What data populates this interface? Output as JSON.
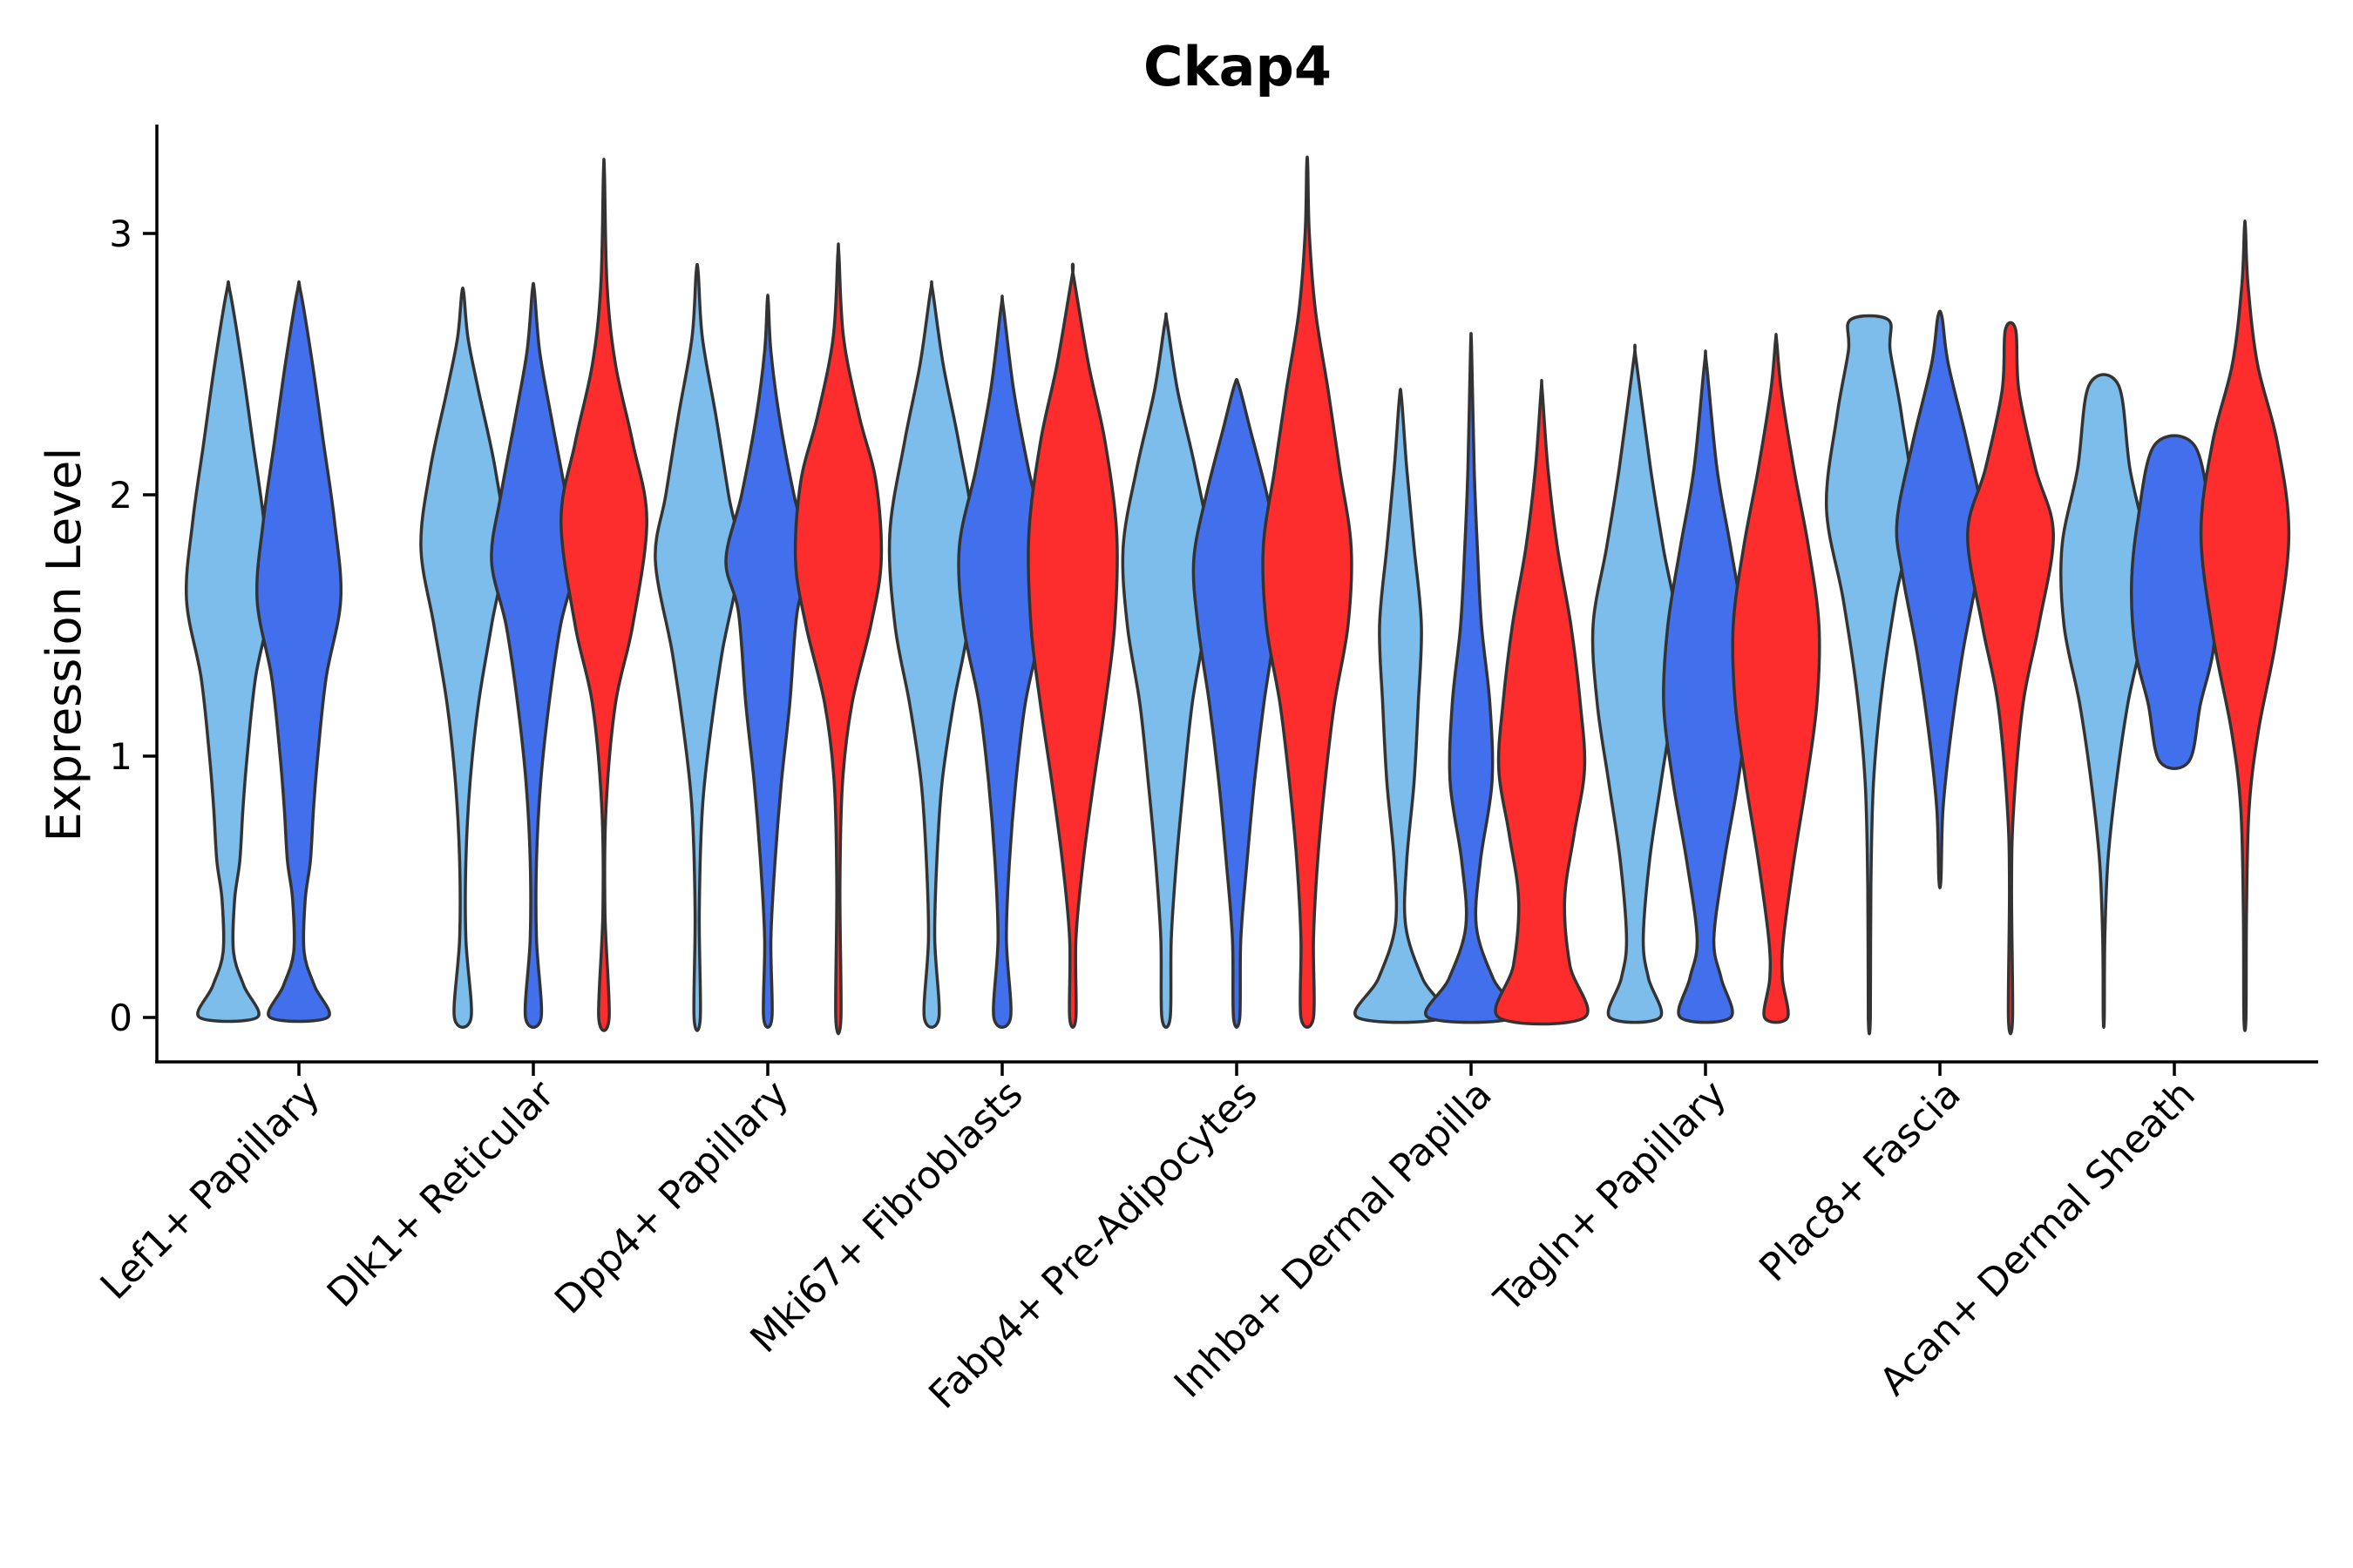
{
  "chart_data": {
    "type": "violin",
    "title": "Ckap4",
    "xlabel": "",
    "ylabel": "Expression Level",
    "ylim": [
      -0.16,
      3.42
    ],
    "yticks": [
      0,
      1,
      2,
      3
    ],
    "grid": false,
    "legend": "none",
    "colors": [
      "#7dbdec",
      "#4270ec",
      "#fe2d2d"
    ],
    "categories": [
      "Lef1+ Papillary",
      "Dlk1+ Reticular",
      "Dpp4+ Papillary",
      "Mki67+ Fibroblasts",
      "Fabp4+ Pre-Adipocytes",
      "Inhba+ Dermal Papilla",
      "Tagln+ Papillary",
      "Plac8+ Fascia",
      "Acan+ Dermal Sheath"
    ],
    "violins": [
      {
        "category": 0,
        "color_index": 0,
        "min": 0,
        "max": 2.78,
        "profile": [
          [
            0,
            0.55
          ],
          [
            0.12,
            0.3
          ],
          [
            0.25,
            0.1
          ],
          [
            0.45,
            0.12
          ],
          [
            0.6,
            0.22
          ],
          [
            0.8,
            0.28
          ],
          [
            1.0,
            0.36
          ],
          [
            1.3,
            0.52
          ],
          [
            1.6,
            0.8
          ],
          [
            1.9,
            0.68
          ],
          [
            2.2,
            0.47
          ],
          [
            2.5,
            0.26
          ],
          [
            2.78,
            0.03
          ]
        ]
      },
      {
        "category": 0,
        "color_index": 1,
        "min": 0,
        "max": 2.78,
        "profile": [
          [
            0,
            0.55
          ],
          [
            0.12,
            0.3
          ],
          [
            0.25,
            0.1
          ],
          [
            0.45,
            0.12
          ],
          [
            0.6,
            0.22
          ],
          [
            0.8,
            0.28
          ],
          [
            1.0,
            0.36
          ],
          [
            1.3,
            0.52
          ],
          [
            1.6,
            0.8
          ],
          [
            1.9,
            0.68
          ],
          [
            2.2,
            0.47
          ],
          [
            2.5,
            0.26
          ],
          [
            2.78,
            0.03
          ]
        ]
      },
      {
        "category": 1,
        "color_index": 0,
        "min": 0,
        "max": 2.77,
        "profile": [
          [
            0,
            0.16
          ],
          [
            0.3,
            0.06
          ],
          [
            0.6,
            0.06
          ],
          [
            0.9,
            0.14
          ],
          [
            1.2,
            0.3
          ],
          [
            1.5,
            0.55
          ],
          [
            1.8,
            0.8
          ],
          [
            2.1,
            0.62
          ],
          [
            2.4,
            0.3
          ],
          [
            2.6,
            0.1
          ],
          [
            2.77,
            0.02
          ]
        ]
      },
      {
        "category": 1,
        "color_index": 1,
        "min": 0,
        "max": 2.78,
        "profile": [
          [
            0,
            0.15
          ],
          [
            0.3,
            0.06
          ],
          [
            0.6,
            0.06
          ],
          [
            0.9,
            0.14
          ],
          [
            1.2,
            0.3
          ],
          [
            1.5,
            0.52
          ],
          [
            1.75,
            0.8
          ],
          [
            2.0,
            0.62
          ],
          [
            2.3,
            0.34
          ],
          [
            2.55,
            0.12
          ],
          [
            2.78,
            0.02
          ]
        ]
      },
      {
        "category": 1,
        "color_index": 2,
        "min": 0,
        "max": 3.23,
        "profile": [
          [
            0,
            0.1
          ],
          [
            0.4,
            0.02
          ],
          [
            0.8,
            0.04
          ],
          [
            1.2,
            0.22
          ],
          [
            1.5,
            0.55
          ],
          [
            1.9,
            0.82
          ],
          [
            2.2,
            0.55
          ],
          [
            2.5,
            0.22
          ],
          [
            2.8,
            0.06
          ],
          [
            3.23,
            0.01
          ]
        ]
      },
      {
        "category": 2,
        "color_index": 0,
        "min": 0,
        "max": 2.85,
        "profile": [
          [
            0,
            0.06
          ],
          [
            0.4,
            0.04
          ],
          [
            0.8,
            0.1
          ],
          [
            1.1,
            0.26
          ],
          [
            1.4,
            0.48
          ],
          [
            1.75,
            0.8
          ],
          [
            2.0,
            0.6
          ],
          [
            2.3,
            0.36
          ],
          [
            2.6,
            0.1
          ],
          [
            2.85,
            0.02
          ]
        ]
      },
      {
        "category": 2,
        "color_index": 1,
        "min": 0,
        "max": 2.74,
        "profile": [
          [
            0,
            0.08
          ],
          [
            0.3,
            0.06
          ],
          [
            0.6,
            0.14
          ],
          [
            0.9,
            0.26
          ],
          [
            1.2,
            0.42
          ],
          [
            1.55,
            0.56
          ],
          [
            1.75,
            0.8
          ],
          [
            2.0,
            0.5
          ],
          [
            2.3,
            0.22
          ],
          [
            2.55,
            0.06
          ],
          [
            2.74,
            0.01
          ]
        ]
      },
      {
        "category": 2,
        "color_index": 2,
        "min": 0,
        "max": 2.92,
        "profile": [
          [
            0,
            0.05
          ],
          [
            0.5,
            0.03
          ],
          [
            0.9,
            0.08
          ],
          [
            1.2,
            0.26
          ],
          [
            1.5,
            0.62
          ],
          [
            1.75,
            0.82
          ],
          [
            2.05,
            0.72
          ],
          [
            2.3,
            0.4
          ],
          [
            2.6,
            0.1
          ],
          [
            2.92,
            0.01
          ]
        ]
      },
      {
        "category": 3,
        "color_index": 0,
        "min": 0,
        "max": 2.78,
        "profile": [
          [
            0,
            0.14
          ],
          [
            0.3,
            0.06
          ],
          [
            0.6,
            0.1
          ],
          [
            0.9,
            0.2
          ],
          [
            1.2,
            0.42
          ],
          [
            1.5,
            0.7
          ],
          [
            1.85,
            0.8
          ],
          [
            2.2,
            0.52
          ],
          [
            2.5,
            0.22
          ],
          [
            2.78,
            0.02
          ]
        ]
      },
      {
        "category": 3,
        "color_index": 1,
        "min": 0,
        "max": 2.72,
        "profile": [
          [
            0,
            0.16
          ],
          [
            0.3,
            0.08
          ],
          [
            0.6,
            0.14
          ],
          [
            0.9,
            0.26
          ],
          [
            1.2,
            0.44
          ],
          [
            1.5,
            0.74
          ],
          [
            1.8,
            0.82
          ],
          [
            2.1,
            0.5
          ],
          [
            2.4,
            0.22
          ],
          [
            2.72,
            0.02
          ]
        ]
      },
      {
        "category": 3,
        "color_index": 2,
        "min": 0,
        "max": 2.84,
        "profile": [
          [
            0,
            0.06
          ],
          [
            0.3,
            0.06
          ],
          [
            0.6,
            0.2
          ],
          [
            0.9,
            0.4
          ],
          [
            1.2,
            0.62
          ],
          [
            1.5,
            0.8
          ],
          [
            1.85,
            0.84
          ],
          [
            2.2,
            0.62
          ],
          [
            2.5,
            0.3
          ],
          [
            2.84,
            0.01
          ]
        ]
      },
      {
        "category": 4,
        "color_index": 0,
        "min": 0,
        "max": 2.66,
        "profile": [
          [
            0,
            0.08
          ],
          [
            0.3,
            0.1
          ],
          [
            0.6,
            0.2
          ],
          [
            0.9,
            0.34
          ],
          [
            1.2,
            0.5
          ],
          [
            1.5,
            0.74
          ],
          [
            1.8,
            0.82
          ],
          [
            2.1,
            0.56
          ],
          [
            2.4,
            0.22
          ],
          [
            2.66,
            0.02
          ]
        ]
      },
      {
        "category": 4,
        "color_index": 1,
        "min": 0,
        "max": 2.42,
        "profile": [
          [
            0,
            0.06
          ],
          [
            0.3,
            0.08
          ],
          [
            0.6,
            0.2
          ],
          [
            0.9,
            0.34
          ],
          [
            1.2,
            0.52
          ],
          [
            1.5,
            0.74
          ],
          [
            1.75,
            0.82
          ],
          [
            2.0,
            0.58
          ],
          [
            2.25,
            0.26
          ],
          [
            2.42,
            0.04
          ]
        ]
      },
      {
        "category": 4,
        "color_index": 2,
        "min": 0,
        "max": 3.26,
        "profile": [
          [
            0,
            0.12
          ],
          [
            0.3,
            0.12
          ],
          [
            0.6,
            0.2
          ],
          [
            0.9,
            0.34
          ],
          [
            1.2,
            0.52
          ],
          [
            1.5,
            0.78
          ],
          [
            1.8,
            0.84
          ],
          [
            2.1,
            0.62
          ],
          [
            2.4,
            0.4
          ],
          [
            2.7,
            0.16
          ],
          [
            3.0,
            0.04
          ],
          [
            3.26,
            0.01
          ]
        ]
      },
      {
        "category": 5,
        "color_index": 0,
        "min": 0,
        "max": 2.37,
        "profile": [
          [
            0,
            0.82
          ],
          [
            0.15,
            0.42
          ],
          [
            0.35,
            0.1
          ],
          [
            0.6,
            0.12
          ],
          [
            0.9,
            0.26
          ],
          [
            1.2,
            0.34
          ],
          [
            1.5,
            0.4
          ],
          [
            1.8,
            0.26
          ],
          [
            2.1,
            0.12
          ],
          [
            2.37,
            0.02
          ]
        ]
      },
      {
        "category": 5,
        "color_index": 1,
        "min": 0,
        "max": 2.56,
        "profile": [
          [
            0,
            0.82
          ],
          [
            0.15,
            0.42
          ],
          [
            0.35,
            0.1
          ],
          [
            0.6,
            0.18
          ],
          [
            0.9,
            0.4
          ],
          [
            1.2,
            0.36
          ],
          [
            1.5,
            0.2
          ],
          [
            1.8,
            0.12
          ],
          [
            2.1,
            0.06
          ],
          [
            2.56,
            0.01
          ]
        ]
      },
      {
        "category": 5,
        "color_index": 2,
        "min": 0,
        "max": 2.4,
        "profile": [
          [
            0,
            0.82
          ],
          [
            0.2,
            0.54
          ],
          [
            0.45,
            0.44
          ],
          [
            0.7,
            0.62
          ],
          [
            0.95,
            0.82
          ],
          [
            1.2,
            0.74
          ],
          [
            1.5,
            0.56
          ],
          [
            1.8,
            0.3
          ],
          [
            2.1,
            0.12
          ],
          [
            2.4,
            0.01
          ]
        ]
      },
      {
        "category": 6,
        "color_index": 0,
        "min": 0,
        "max": 2.52,
        "profile": [
          [
            0,
            0.48
          ],
          [
            0.15,
            0.26
          ],
          [
            0.3,
            0.16
          ],
          [
            0.6,
            0.28
          ],
          [
            0.9,
            0.5
          ],
          [
            1.2,
            0.72
          ],
          [
            1.5,
            0.8
          ],
          [
            1.8,
            0.54
          ],
          [
            2.1,
            0.3
          ],
          [
            2.52,
            0.02
          ]
        ]
      },
      {
        "category": 6,
        "color_index": 1,
        "min": 0,
        "max": 2.5,
        "profile": [
          [
            0,
            0.48
          ],
          [
            0.15,
            0.3
          ],
          [
            0.3,
            0.16
          ],
          [
            0.6,
            0.36
          ],
          [
            0.9,
            0.62
          ],
          [
            1.2,
            0.8
          ],
          [
            1.5,
            0.72
          ],
          [
            1.8,
            0.48
          ],
          [
            2.1,
            0.22
          ],
          [
            2.5,
            0.02
          ]
        ]
      },
      {
        "category": 6,
        "color_index": 2,
        "min": 0,
        "max": 2.59,
        "profile": [
          [
            0,
            0.22
          ],
          [
            0.15,
            0.12
          ],
          [
            0.3,
            0.14
          ],
          [
            0.6,
            0.34
          ],
          [
            0.9,
            0.58
          ],
          [
            1.2,
            0.78
          ],
          [
            1.5,
            0.82
          ],
          [
            1.8,
            0.62
          ],
          [
            2.1,
            0.34
          ],
          [
            2.4,
            0.1
          ],
          [
            2.59,
            0.01
          ]
        ]
      },
      {
        "category": 7,
        "color_index": 0,
        "min": 0,
        "max": 2.67,
        "profile": [
          [
            0,
            0.02
          ],
          [
            0.5,
            0.03
          ],
          [
            0.9,
            0.08
          ],
          [
            1.25,
            0.24
          ],
          [
            1.6,
            0.5
          ],
          [
            1.95,
            0.82
          ],
          [
            2.3,
            0.62
          ],
          [
            2.55,
            0.4
          ],
          [
            2.67,
            0.36
          ]
        ]
      },
      {
        "category": 7,
        "color_index": 1,
        "min": 0.53,
        "max": 2.68,
        "profile": [
          [
            0.53,
            0.02
          ],
          [
            0.8,
            0.06
          ],
          [
            1.1,
            0.22
          ],
          [
            1.4,
            0.44
          ],
          [
            1.7,
            0.72
          ],
          [
            1.9,
            0.82
          ],
          [
            2.2,
            0.52
          ],
          [
            2.5,
            0.16
          ],
          [
            2.68,
            0.04
          ]
        ]
      },
      {
        "category": 7,
        "color_index": 2,
        "min": 0,
        "max": 2.63,
        "profile": [
          [
            0,
            0.04
          ],
          [
            0.5,
            0.02
          ],
          [
            0.8,
            0.06
          ],
          [
            1.2,
            0.24
          ],
          [
            1.5,
            0.54
          ],
          [
            1.85,
            0.82
          ],
          [
            2.1,
            0.48
          ],
          [
            2.4,
            0.16
          ],
          [
            2.63,
            0.1
          ]
        ]
      },
      {
        "category": 8,
        "color_index": 0,
        "min": 0,
        "max": 2.42,
        "profile": [
          [
            0,
            0.01
          ],
          [
            0.3,
            0.02
          ],
          [
            0.6,
            0.08
          ],
          [
            0.9,
            0.24
          ],
          [
            1.2,
            0.46
          ],
          [
            1.5,
            0.76
          ],
          [
            1.8,
            0.8
          ],
          [
            2.1,
            0.5
          ],
          [
            2.42,
            0.28
          ]
        ]
      },
      {
        "category": 8,
        "color_index": 1,
        "min": 0.98,
        "max": 2.19,
        "profile": [
          [
            0.98,
            0.28
          ],
          [
            1.2,
            0.5
          ],
          [
            1.4,
            0.74
          ],
          [
            1.65,
            0.82
          ],
          [
            1.9,
            0.7
          ],
          [
            2.19,
            0.38
          ]
        ]
      },
      {
        "category": 8,
        "color_index": 2,
        "min": 0,
        "max": 3.02,
        "profile": [
          [
            0,
            0.02
          ],
          [
            0.4,
            0.03
          ],
          [
            0.8,
            0.08
          ],
          [
            1.1,
            0.26
          ],
          [
            1.45,
            0.6
          ],
          [
            1.85,
            0.84
          ],
          [
            2.2,
            0.62
          ],
          [
            2.5,
            0.24
          ],
          [
            2.8,
            0.06
          ],
          [
            3.02,
            0.01
          ]
        ]
      }
    ]
  }
}
